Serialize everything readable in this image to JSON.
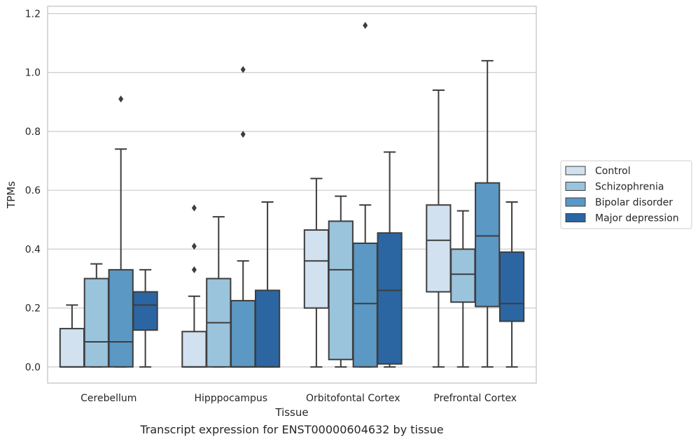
{
  "chart_data": {
    "type": "box",
    "title": "",
    "caption": "Transcript expression for ENST00000604632 by tissue",
    "xlabel": "Tissue",
    "ylabel": "TPMs",
    "ylim": [
      -0.055,
      1.225
    ],
    "yticks": [
      0.0,
      0.2,
      0.4,
      0.6,
      0.8,
      1.0,
      1.2
    ],
    "ytick_labels": [
      "0.0",
      "0.2",
      "0.4",
      "0.6",
      "0.8",
      "1.0",
      "1.2"
    ],
    "grid": "horizontal",
    "legend_position": "outside-right",
    "categories": [
      "Cerebellum",
      "Hipppocampus",
      "Orbitofontal Cortex",
      "Prefrontal Cortex"
    ],
    "series": [
      {
        "name": "Control",
        "color": "#d1e1f0",
        "boxes": [
          {
            "whislo": 0.0,
            "q1": 0.0,
            "med": 0.0,
            "q3": 0.13,
            "whishi": 0.21,
            "fliers": []
          },
          {
            "whislo": 0.0,
            "q1": 0.0,
            "med": 0.0,
            "q3": 0.12,
            "whishi": 0.24,
            "fliers": [
              0.54,
              0.41,
              0.33
            ]
          },
          {
            "whislo": 0.0,
            "q1": 0.2,
            "med": 0.36,
            "q3": 0.465,
            "whishi": 0.64,
            "fliers": []
          },
          {
            "whislo": 0.0,
            "q1": 0.255,
            "med": 0.43,
            "q3": 0.55,
            "whishi": 0.94,
            "fliers": []
          }
        ]
      },
      {
        "name": "Schizophrenia",
        "color": "#9ac3dc",
        "boxes": [
          {
            "whislo": 0.0,
            "q1": 0.0,
            "med": 0.085,
            "q3": 0.3,
            "whishi": 0.35,
            "fliers": []
          },
          {
            "whislo": 0.0,
            "q1": 0.0,
            "med": 0.15,
            "q3": 0.3,
            "whishi": 0.51,
            "fliers": []
          },
          {
            "whislo": 0.0,
            "q1": 0.025,
            "med": 0.33,
            "q3": 0.495,
            "whishi": 0.58,
            "fliers": []
          },
          {
            "whislo": 0.0,
            "q1": 0.22,
            "med": 0.315,
            "q3": 0.4,
            "whishi": 0.53,
            "fliers": []
          }
        ]
      },
      {
        "name": "Bipolar disorder",
        "color": "#5b98c4",
        "boxes": [
          {
            "whislo": 0.0,
            "q1": 0.0,
            "med": 0.085,
            "q3": 0.33,
            "whishi": 0.74,
            "fliers": [
              0.91
            ]
          },
          {
            "whislo": 0.0,
            "q1": 0.0,
            "med": 0.0,
            "q3": 0.225,
            "whishi": 0.36,
            "fliers": [
              1.01,
              0.79
            ]
          },
          {
            "whislo": 0.0,
            "q1": 0.0,
            "med": 0.215,
            "q3": 0.42,
            "whishi": 0.55,
            "fliers": [
              1.16
            ]
          },
          {
            "whislo": 0.0,
            "q1": 0.205,
            "med": 0.445,
            "q3": 0.625,
            "whishi": 1.04,
            "fliers": []
          }
        ]
      },
      {
        "name": "Major depression",
        "color": "#2b66a3",
        "boxes": [
          {
            "whislo": 0.0,
            "q1": 0.125,
            "med": 0.21,
            "q3": 0.255,
            "whishi": 0.33,
            "fliers": []
          },
          {
            "whislo": 0.0,
            "q1": 0.0,
            "med": 0.0,
            "q3": 0.26,
            "whishi": 0.56,
            "fliers": []
          },
          {
            "whislo": 0.0,
            "q1": 0.01,
            "med": 0.26,
            "q3": 0.455,
            "whishi": 0.73,
            "fliers": []
          },
          {
            "whislo": 0.0,
            "q1": 0.155,
            "med": 0.215,
            "q3": 0.39,
            "whishi": 0.56,
            "fliers": []
          }
        ]
      }
    ]
  }
}
